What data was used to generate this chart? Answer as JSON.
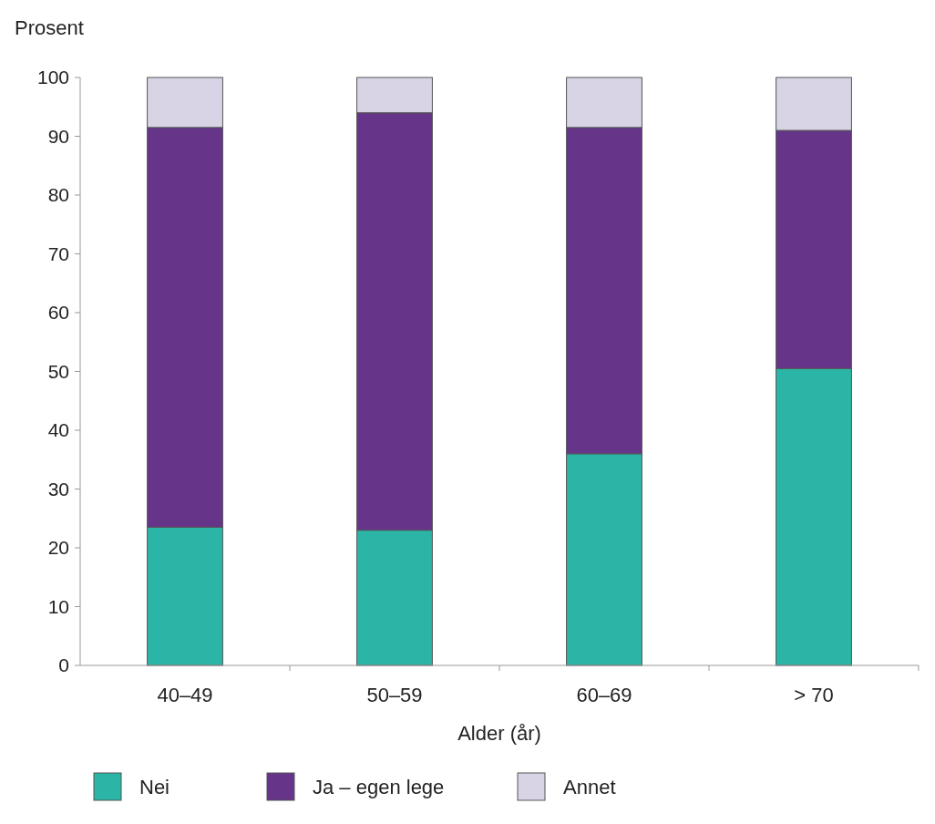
{
  "chart_data": {
    "type": "bar",
    "stacked": true,
    "ylabel": "Prosent",
    "xlabel": "Alder (år)",
    "categories": [
      "40–49",
      "50–59",
      "60–69",
      "> 70"
    ],
    "series": [
      {
        "name": "Nei",
        "color": "#2bb5a6",
        "values": [
          23.5,
          23,
          36,
          50.5
        ]
      },
      {
        "name": "Ja – egen lege",
        "color": "#66358a",
        "values": [
          68,
          71,
          55.5,
          40.5
        ]
      },
      {
        "name": "Annet",
        "color": "#d9d3e6",
        "values": [
          8.5,
          6,
          8.5,
          9
        ]
      }
    ],
    "ylim": [
      0,
      100
    ],
    "yticks": [
      0,
      10,
      20,
      30,
      40,
      50,
      60,
      70,
      80,
      90,
      100
    ],
    "grid": false,
    "legend": "bottom"
  }
}
